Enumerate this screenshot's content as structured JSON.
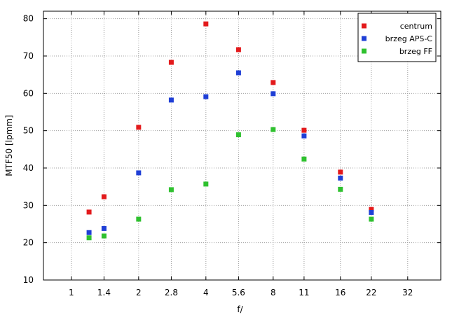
{
  "chart_data": {
    "type": "scatter",
    "xlabel": "f/",
    "ylabel": "MTF50 [lpmm]",
    "x_scale": "log2",
    "x_ticks": [
      1,
      1.4,
      2,
      2.8,
      4,
      5.6,
      8,
      11,
      16,
      22,
      32
    ],
    "x_tick_labels": [
      "1",
      "1.4",
      "2",
      "2.8",
      "4",
      "5.6",
      "8",
      "11",
      "16",
      "22",
      "32"
    ],
    "xlim": [
      0.75,
      45
    ],
    "ylim": [
      10,
      82
    ],
    "y_ticks": [
      10,
      20,
      30,
      40,
      50,
      60,
      70,
      80
    ],
    "y_tick_labels": [
      "10",
      "20",
      "30",
      "40",
      "50",
      "60",
      "70",
      "80"
    ],
    "grid": true,
    "legend_position": "top-right",
    "series": [
      {
        "name": "centrum",
        "color": "#e31a1c",
        "x": [
          1.2,
          1.4,
          2,
          2.8,
          4,
          5.6,
          8,
          11,
          16,
          22
        ],
        "y": [
          28.2,
          32.3,
          50.9,
          68.3,
          78.6,
          71.7,
          62.9,
          50.1,
          38.9,
          28.9
        ]
      },
      {
        "name": "brzeg APS-C",
        "color": "#1f3fd6",
        "x": [
          1.2,
          1.4,
          2,
          2.8,
          4,
          5.6,
          8,
          11,
          16,
          22
        ],
        "y": [
          22.7,
          23.8,
          38.7,
          58.2,
          59.1,
          65.5,
          59.9,
          48.6,
          37.3,
          28.1
        ]
      },
      {
        "name": "brzeg FF",
        "color": "#2fc12f",
        "x": [
          1.2,
          1.4,
          2,
          2.8,
          4,
          5.6,
          8,
          11,
          16,
          22
        ],
        "y": [
          21.3,
          21.8,
          26.3,
          34.2,
          35.7,
          48.9,
          50.3,
          42.4,
          34.3,
          26.3
        ]
      }
    ]
  }
}
